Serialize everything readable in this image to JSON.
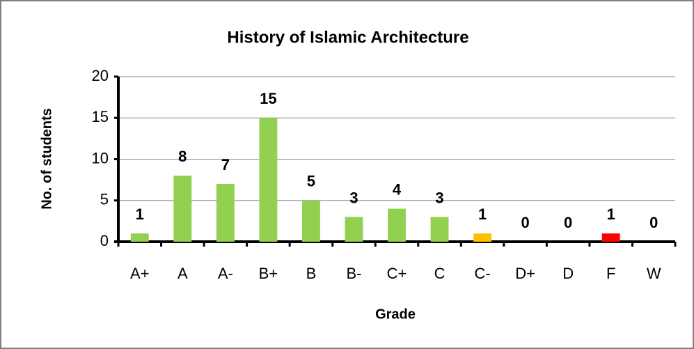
{
  "chart_data": {
    "type": "bar",
    "title": "History of Islamic Architecture",
    "x_label": "Grade",
    "y_label": "No. of students",
    "categories": [
      "A+",
      "A",
      "A-",
      "B+",
      "B",
      "B-",
      "C+",
      "C",
      "C-",
      "D+",
      "D",
      "F",
      "W"
    ],
    "values": [
      1,
      8,
      7,
      15,
      5,
      3,
      4,
      3,
      1,
      0,
      0,
      1,
      0
    ],
    "colors": [
      "#92d050",
      "#92d050",
      "#92d050",
      "#92d050",
      "#92d050",
      "#92d050",
      "#92d050",
      "#92d050",
      "#ffc000",
      "#92d050",
      "#92d050",
      "#ff0000",
      "#92d050"
    ],
    "ylim": [
      0,
      20
    ],
    "yticks": [
      0,
      5,
      10,
      15,
      20
    ],
    "grid": true
  }
}
